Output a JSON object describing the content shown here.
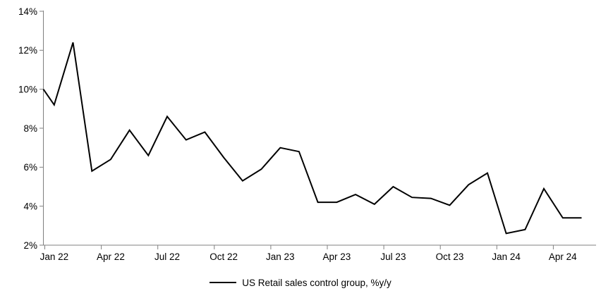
{
  "chart_data": {
    "type": "line",
    "title": "",
    "legend_label": "US Retail sales control group, %y/y",
    "legend_position": "bottom-center",
    "grid": false,
    "ylim": [
      2,
      14
    ],
    "y_tick_labels": [
      "2%",
      "4%",
      "6%",
      "8%",
      "10%",
      "12%",
      "14%"
    ],
    "x_tick_labels": [
      "Jan 22",
      "Apr 22",
      "Jul 22",
      "Oct 22",
      "Jan 23",
      "Apr 23",
      "Jul 23",
      "Oct 23",
      "Jan 24",
      "Apr 24"
    ],
    "x_tick_every_months": 3,
    "categories": [
      "Dec 21",
      "Jan 22",
      "Feb 22",
      "Mar 22",
      "Apr 22",
      "May 22",
      "Jun 22",
      "Jul 22",
      "Aug 22",
      "Sep 22",
      "Oct 22",
      "Nov 22",
      "Dec 22",
      "Jan 23",
      "Feb 23",
      "Mar 23",
      "Apr 23",
      "May 23",
      "Jun 23",
      "Jul 23",
      "Aug 23",
      "Sep 23",
      "Oct 23",
      "Nov 23",
      "Dec 23",
      "Jan 24",
      "Feb 24",
      "Mar 24",
      "Apr 24",
      "May 24"
    ],
    "values": [
      10.0,
      9.2,
      12.4,
      5.8,
      6.4,
      7.9,
      6.6,
      8.6,
      7.4,
      7.8,
      6.5,
      5.3,
      5.9,
      7.0,
      6.8,
      4.2,
      4.2,
      4.6,
      4.1,
      5.0,
      4.45,
      4.4,
      4.05,
      5.1,
      5.7,
      2.6,
      2.8,
      4.9,
      3.4,
      3.4
    ],
    "first_point_at_plot_edge": true,
    "series_color": "#000000",
    "axis_color": "#808080",
    "text_color": "#000000"
  }
}
